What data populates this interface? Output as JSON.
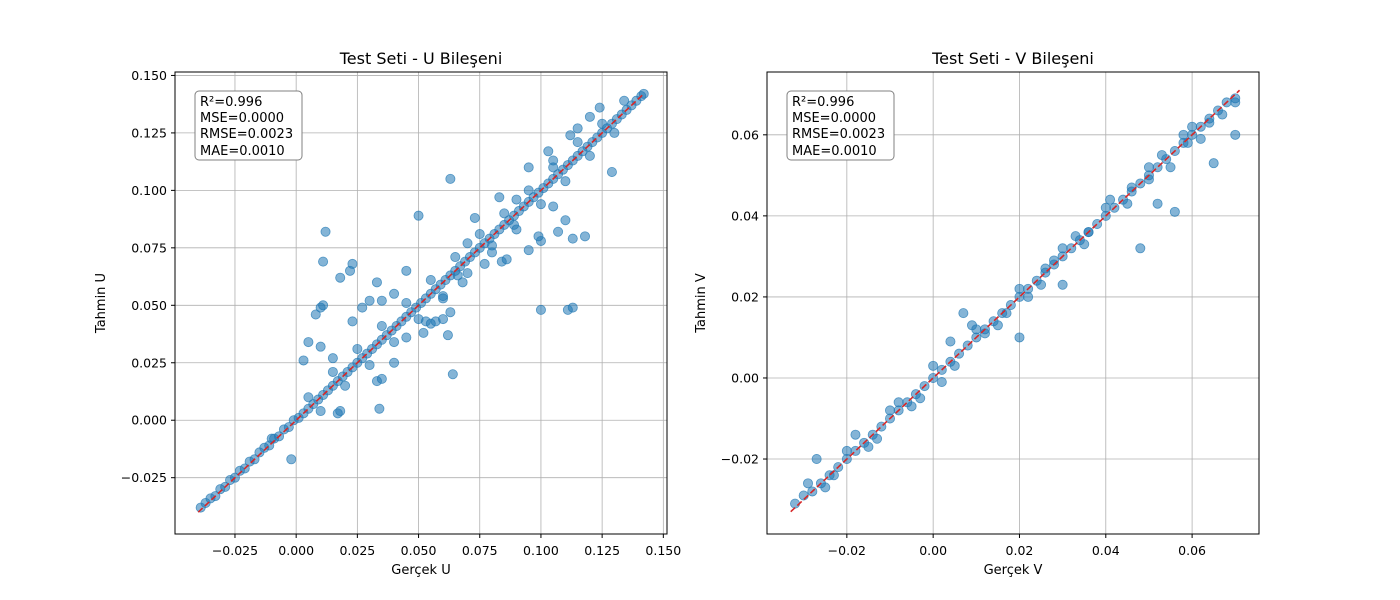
{
  "chart_data": [
    {
      "type": "scatter",
      "title": "Test Seti - U Bileşeni",
      "xlabel": "Gerçek U",
      "ylabel": "Tahmin U",
      "xlim": [
        -0.0495,
        0.1515
      ],
      "ylim": [
        -0.0495,
        0.1515
      ],
      "xticks": [
        -0.025,
        0.0,
        0.025,
        0.05,
        0.075,
        0.1,
        0.125,
        0.15
      ],
      "yticks": [
        -0.025,
        0.0,
        0.025,
        0.05,
        0.075,
        0.1,
        0.125,
        0.15
      ],
      "xtick_labels": [
        "−0.025",
        "0.000",
        "0.025",
        "0.050",
        "0.075",
        "0.100",
        "0.125",
        "0.150"
      ],
      "ytick_labels": [
        "−0.025",
        "0.000",
        "0.025",
        "0.050",
        "0.075",
        "0.100",
        "0.125",
        "0.150"
      ],
      "grid": true,
      "point_color": "#1f77b4",
      "reference_line": {
        "from": [
          -0.04,
          -0.04
        ],
        "to": [
          0.142,
          0.142
        ],
        "color": "#d62728",
        "style": "dashed"
      },
      "stats": [
        "R²=0.996",
        "MSE=0.0000",
        "RMSE=0.0023",
        "MAE=0.0010"
      ],
      "stats_position": "top-left",
      "points": [
        [
          -0.039,
          -0.038
        ],
        [
          -0.037,
          -0.036
        ],
        [
          -0.035,
          -0.034
        ],
        [
          -0.033,
          -0.033
        ],
        [
          -0.031,
          -0.03
        ],
        [
          -0.029,
          -0.029
        ],
        [
          -0.027,
          -0.026
        ],
        [
          -0.025,
          -0.025
        ],
        [
          -0.023,
          -0.022
        ],
        [
          -0.021,
          -0.021
        ],
        [
          -0.019,
          -0.018
        ],
        [
          -0.017,
          -0.017
        ],
        [
          -0.015,
          -0.014
        ],
        [
          -0.013,
          -0.012
        ],
        [
          -0.011,
          -0.011
        ],
        [
          -0.009,
          -0.008
        ],
        [
          -0.007,
          -0.007
        ],
        [
          -0.005,
          -0.004
        ],
        [
          -0.003,
          -0.003
        ],
        [
          -0.001,
          0.0
        ],
        [
          0.001,
          0.001
        ],
        [
          0.003,
          0.003
        ],
        [
          0.005,
          0.005
        ],
        [
          0.007,
          0.007
        ],
        [
          0.009,
          0.009
        ],
        [
          0.011,
          0.011
        ],
        [
          0.013,
          0.013
        ],
        [
          0.015,
          0.015
        ],
        [
          0.017,
          0.017
        ],
        [
          0.019,
          0.019
        ],
        [
          0.021,
          0.021
        ],
        [
          0.023,
          0.023
        ],
        [
          0.025,
          0.025
        ],
        [
          0.027,
          0.027
        ],
        [
          0.029,
          0.029
        ],
        [
          0.031,
          0.031
        ],
        [
          0.033,
          0.033
        ],
        [
          0.035,
          0.035
        ],
        [
          0.037,
          0.037
        ],
        [
          0.039,
          0.039
        ],
        [
          0.041,
          0.041
        ],
        [
          0.043,
          0.043
        ],
        [
          0.045,
          0.045
        ],
        [
          0.047,
          0.047
        ],
        [
          0.049,
          0.049
        ],
        [
          0.051,
          0.051
        ],
        [
          0.053,
          0.053
        ],
        [
          0.055,
          0.055
        ],
        [
          0.057,
          0.057
        ],
        [
          0.059,
          0.059
        ],
        [
          0.061,
          0.061
        ],
        [
          0.063,
          0.063
        ],
        [
          0.065,
          0.065
        ],
        [
          0.067,
          0.067
        ],
        [
          0.069,
          0.069
        ],
        [
          0.071,
          0.071
        ],
        [
          0.073,
          0.073
        ],
        [
          0.075,
          0.075
        ],
        [
          0.077,
          0.077
        ],
        [
          0.079,
          0.079
        ],
        [
          0.081,
          0.081
        ],
        [
          0.083,
          0.083
        ],
        [
          0.085,
          0.085
        ],
        [
          0.087,
          0.087
        ],
        [
          0.089,
          0.089
        ],
        [
          0.091,
          0.091
        ],
        [
          0.093,
          0.093
        ],
        [
          0.095,
          0.095
        ],
        [
          0.097,
          0.097
        ],
        [
          0.099,
          0.099
        ],
        [
          0.101,
          0.101
        ],
        [
          0.103,
          0.103
        ],
        [
          0.105,
          0.105
        ],
        [
          0.107,
          0.107
        ],
        [
          0.109,
          0.109
        ],
        [
          0.111,
          0.111
        ],
        [
          0.113,
          0.113
        ],
        [
          0.115,
          0.115
        ],
        [
          0.117,
          0.117
        ],
        [
          0.119,
          0.119
        ],
        [
          0.121,
          0.121
        ],
        [
          0.123,
          0.123
        ],
        [
          0.125,
          0.125
        ],
        [
          0.127,
          0.127
        ],
        [
          0.129,
          0.129
        ],
        [
          0.131,
          0.131
        ],
        [
          0.133,
          0.133
        ],
        [
          0.135,
          0.135
        ],
        [
          0.137,
          0.137
        ],
        [
          0.139,
          0.139
        ],
        [
          0.141,
          0.141
        ],
        [
          0.142,
          0.142
        ],
        [
          0.01,
          0.004
        ],
        [
          0.02,
          0.015
        ],
        [
          0.03,
          0.024
        ],
        [
          0.04,
          0.034
        ],
        [
          0.05,
          0.044
        ],
        [
          0.06,
          0.054
        ],
        [
          0.07,
          0.064
        ],
        [
          0.08,
          0.073
        ],
        [
          0.09,
          0.083
        ],
        [
          0.1,
          0.094
        ],
        [
          0.11,
          0.104
        ],
        [
          0.12,
          0.115
        ],
        [
          0.13,
          0.125
        ],
        [
          0.005,
          0.01
        ],
        [
          0.015,
          0.021
        ],
        [
          0.025,
          0.031
        ],
        [
          0.035,
          0.041
        ],
        [
          0.045,
          0.051
        ],
        [
          0.055,
          0.061
        ],
        [
          0.065,
          0.071
        ],
        [
          0.075,
          0.081
        ],
        [
          0.085,
          0.09
        ],
        [
          0.095,
          0.1
        ],
        [
          0.105,
          0.11
        ],
        [
          0.115,
          0.121
        ],
        [
          0.125,
          0.129
        ],
        [
          0.063,
          0.105
        ],
        [
          0.012,
          0.082
        ],
        [
          0.011,
          0.069
        ],
        [
          0.023,
          0.068
        ],
        [
          0.022,
          0.065
        ],
        [
          0.018,
          0.062
        ],
        [
          0.05,
          0.089
        ],
        [
          0.045,
          0.065
        ],
        [
          0.033,
          0.06
        ],
        [
          0.03,
          0.052
        ],
        [
          0.027,
          0.049
        ],
        [
          0.011,
          0.05
        ],
        [
          0.01,
          0.049
        ],
        [
          0.035,
          0.052
        ],
        [
          0.04,
          0.055
        ],
        [
          0.023,
          0.043
        ],
        [
          0.008,
          0.046
        ],
        [
          0.005,
          0.034
        ],
        [
          0.01,
          0.032
        ],
        [
          0.003,
          0.026
        ],
        [
          0.015,
          0.027
        ],
        [
          0.064,
          0.02
        ],
        [
          0.062,
          0.037
        ],
        [
          0.055,
          0.042
        ],
        [
          0.053,
          0.043
        ],
        [
          0.057,
          0.043
        ],
        [
          0.06,
          0.044
        ],
        [
          0.063,
          0.047
        ],
        [
          0.052,
          0.038
        ],
        [
          0.045,
          0.036
        ],
        [
          0.04,
          0.025
        ],
        [
          0.035,
          0.018
        ],
        [
          0.033,
          0.017
        ],
        [
          0.034,
          0.005
        ],
        [
          0.018,
          0.004
        ],
        [
          0.017,
          0.003
        ],
        [
          -0.002,
          -0.017
        ],
        [
          -0.01,
          -0.008
        ],
        [
          0.1,
          0.078
        ],
        [
          0.099,
          0.08
        ],
        [
          0.107,
          0.082
        ],
        [
          0.11,
          0.087
        ],
        [
          0.113,
          0.079
        ],
        [
          0.118,
          0.08
        ],
        [
          0.1,
          0.048
        ],
        [
          0.111,
          0.048
        ],
        [
          0.113,
          0.049
        ],
        [
          0.129,
          0.108
        ],
        [
          0.095,
          0.074
        ],
        [
          0.086,
          0.07
        ],
        [
          0.084,
          0.069
        ],
        [
          0.077,
          0.068
        ],
        [
          0.068,
          0.06
        ],
        [
          0.105,
          0.093
        ],
        [
          0.103,
          0.117
        ],
        [
          0.115,
          0.127
        ],
        [
          0.12,
          0.132
        ],
        [
          0.095,
          0.11
        ],
        [
          0.083,
          0.097
        ],
        [
          0.073,
          0.088
        ],
        [
          0.105,
          0.113
        ],
        [
          0.112,
          0.124
        ],
        [
          0.124,
          0.136
        ],
        [
          0.134,
          0.139
        ],
        [
          0.06,
          0.053
        ],
        [
          0.07,
          0.077
        ],
        [
          0.09,
          0.096
        ],
        [
          0.089,
          0.085
        ],
        [
          0.08,
          0.076
        ],
        [
          0.066,
          0.063
        ]
      ]
    },
    {
      "type": "scatter",
      "title": "Test Seti - V Bileşeni",
      "xlabel": "Gerçek V",
      "ylabel": "Tahmin V",
      "xlim": [
        -0.0385,
        0.0755
      ],
      "ylim": [
        -0.0385,
        0.0755
      ],
      "xticks": [
        -0.02,
        0.0,
        0.02,
        0.04,
        0.06
      ],
      "yticks": [
        -0.02,
        0.0,
        0.02,
        0.04,
        0.06
      ],
      "xtick_labels": [
        "−0.02",
        "0.00",
        "0.02",
        "0.04",
        "0.06"
      ],
      "ytick_labels": [
        "−0.02",
        "0.00",
        "0.02",
        "0.04",
        "0.06"
      ],
      "grid": true,
      "point_color": "#1f77b4",
      "reference_line": {
        "from": [
          -0.033,
          -0.033
        ],
        "to": [
          0.071,
          0.071
        ],
        "color": "#d62728",
        "style": "dashed"
      },
      "stats": [
        "R²=0.996",
        "MSE=0.0000",
        "RMSE=0.0023",
        "MAE=0.0010"
      ],
      "stats_position": "top-left",
      "points": [
        [
          -0.032,
          -0.031
        ],
        [
          -0.03,
          -0.029
        ],
        [
          -0.028,
          -0.028
        ],
        [
          -0.026,
          -0.026
        ],
        [
          -0.024,
          -0.024
        ],
        [
          -0.022,
          -0.022
        ],
        [
          -0.02,
          -0.02
        ],
        [
          -0.018,
          -0.018
        ],
        [
          -0.016,
          -0.016
        ],
        [
          -0.014,
          -0.014
        ],
        [
          -0.012,
          -0.012
        ],
        [
          -0.01,
          -0.01
        ],
        [
          -0.008,
          -0.008
        ],
        [
          -0.006,
          -0.006
        ],
        [
          -0.004,
          -0.004
        ],
        [
          -0.002,
          -0.002
        ],
        [
          0.0,
          0.0
        ],
        [
          0.002,
          0.002
        ],
        [
          0.004,
          0.004
        ],
        [
          0.006,
          0.006
        ],
        [
          0.008,
          0.008
        ],
        [
          0.01,
          0.01
        ],
        [
          0.012,
          0.012
        ],
        [
          0.014,
          0.014
        ],
        [
          0.016,
          0.016
        ],
        [
          0.018,
          0.018
        ],
        [
          0.02,
          0.02
        ],
        [
          0.022,
          0.022
        ],
        [
          0.024,
          0.024
        ],
        [
          0.026,
          0.026
        ],
        [
          0.028,
          0.028
        ],
        [
          0.03,
          0.03
        ],
        [
          0.032,
          0.032
        ],
        [
          0.034,
          0.034
        ],
        [
          0.036,
          0.036
        ],
        [
          0.038,
          0.038
        ],
        [
          0.04,
          0.04
        ],
        [
          0.042,
          0.042
        ],
        [
          0.044,
          0.044
        ],
        [
          0.046,
          0.046
        ],
        [
          0.048,
          0.048
        ],
        [
          0.05,
          0.05
        ],
        [
          0.052,
          0.052
        ],
        [
          0.054,
          0.054
        ],
        [
          0.056,
          0.056
        ],
        [
          0.058,
          0.058
        ],
        [
          0.06,
          0.06
        ],
        [
          0.062,
          0.062
        ],
        [
          0.064,
          0.064
        ],
        [
          0.066,
          0.066
        ],
        [
          0.068,
          0.068
        ],
        [
          0.07,
          0.069
        ],
        [
          -0.025,
          -0.027
        ],
        [
          -0.015,
          -0.017
        ],
        [
          -0.005,
          -0.007
        ],
        [
          0.005,
          0.003
        ],
        [
          0.015,
          0.013
        ],
        [
          0.025,
          0.023
        ],
        [
          0.035,
          0.033
        ],
        [
          0.045,
          0.043
        ],
        [
          0.055,
          0.052
        ],
        [
          -0.02,
          -0.018
        ],
        [
          -0.01,
          -0.008
        ],
        [
          0.0,
          0.003
        ],
        [
          0.01,
          0.012
        ],
        [
          0.02,
          0.022
        ],
        [
          0.03,
          0.032
        ],
        [
          0.04,
          0.042
        ],
        [
          0.05,
          0.052
        ],
        [
          0.06,
          0.062
        ],
        [
          0.048,
          0.032
        ],
        [
          0.056,
          0.041
        ],
        [
          0.065,
          0.053
        ],
        [
          0.052,
          0.043
        ],
        [
          0.058,
          0.06
        ],
        [
          0.062,
          0.059
        ],
        [
          0.07,
          0.06
        ],
        [
          0.064,
          0.063
        ],
        [
          0.07,
          0.068
        ],
        [
          0.067,
          0.065
        ],
        [
          0.05,
          0.049
        ],
        [
          0.02,
          0.01
        ],
        [
          0.007,
          0.016
        ],
        [
          0.004,
          0.009
        ],
        [
          0.009,
          0.013
        ],
        [
          0.03,
          0.023
        ],
        [
          0.026,
          0.027
        ],
        [
          0.033,
          0.035
        ],
        [
          0.036,
          0.036
        ],
        [
          0.041,
          0.044
        ],
        [
          0.046,
          0.047
        ],
        [
          0.053,
          0.055
        ],
        [
          0.059,
          0.058
        ],
        [
          -0.029,
          -0.026
        ],
        [
          -0.027,
          -0.02
        ],
        [
          -0.023,
          -0.024
        ],
        [
          -0.018,
          -0.014
        ],
        [
          -0.013,
          -0.015
        ],
        [
          -0.008,
          -0.006
        ],
        [
          -0.003,
          -0.005
        ],
        [
          0.002,
          -0.001
        ],
        [
          0.012,
          0.011
        ],
        [
          0.017,
          0.016
        ],
        [
          0.022,
          0.02
        ],
        [
          0.028,
          0.029
        ]
      ]
    }
  ]
}
